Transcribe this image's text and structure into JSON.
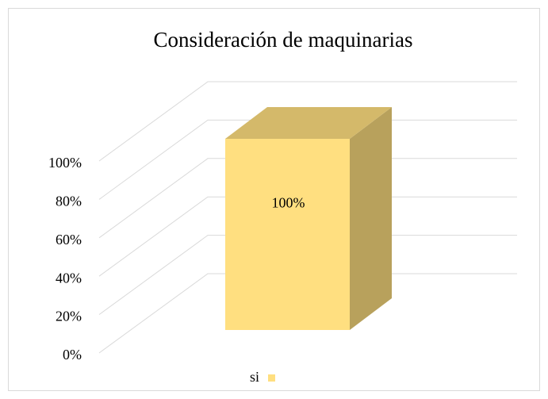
{
  "chart_data": {
    "type": "bar3d",
    "title": "Consideración de maquinarias",
    "categories": [
      null
    ],
    "series": [
      {
        "name": "si",
        "color": "#ffdf80",
        "values": [
          100
        ],
        "value_labels": [
          "100%"
        ]
      }
    ],
    "ylim": [
      0,
      100
    ],
    "yticks": [
      {
        "value": 0,
        "label": "0%"
      },
      {
        "value": 20,
        "label": "20%"
      },
      {
        "value": 40,
        "label": "40%"
      },
      {
        "value": 60,
        "label": "60%"
      },
      {
        "value": 80,
        "label": "80%"
      },
      {
        "value": 100,
        "label": "100%"
      }
    ],
    "grid": true,
    "legend": "bottom"
  }
}
